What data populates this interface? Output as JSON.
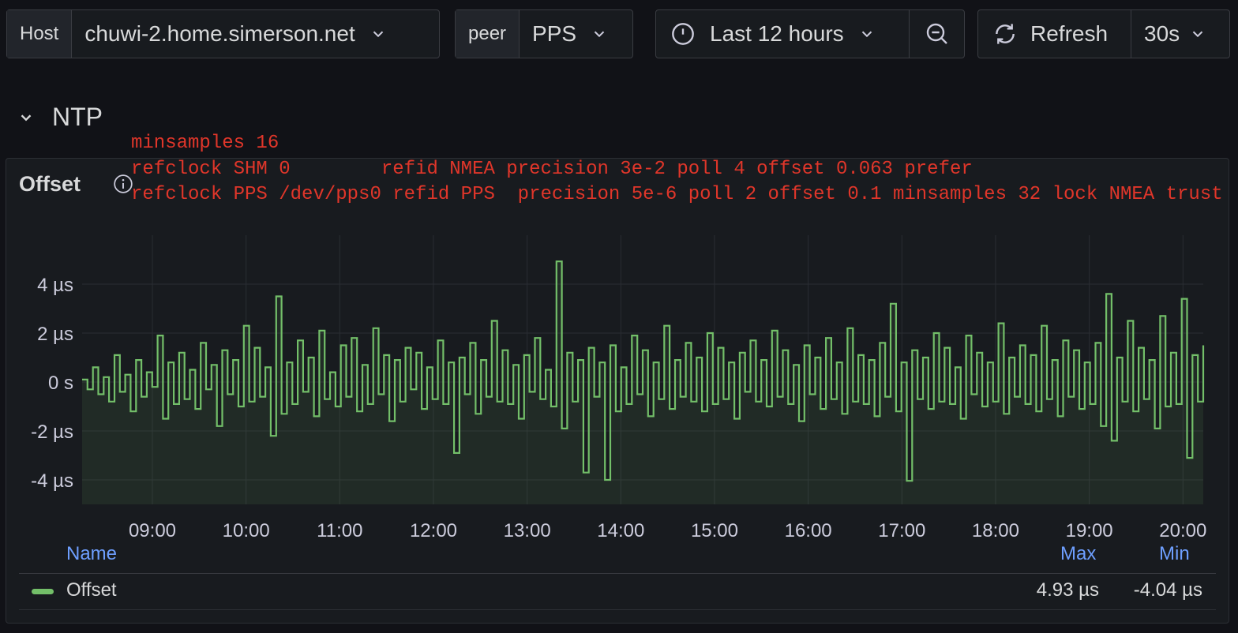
{
  "toolbar": {
    "host": {
      "label": "Host",
      "value": "chuwi-2.home.simerson.net"
    },
    "peer": {
      "label": "peer",
      "value": "PPS"
    },
    "time_range": {
      "label": "Last 12 hours"
    },
    "refresh": {
      "label": "Refresh",
      "interval": "30s"
    }
  },
  "row": {
    "title": "NTP"
  },
  "panel": {
    "title": "Offset",
    "error_text": "minsamples 16\nrefclock SHM 0        refid NMEA precision 3e-2 poll 4 offset 0.063 prefer\nrefclock PPS /dev/pps0 refid PPS  precision 5e-6 poll 2 offset 0.1 minsamples 32 lock NMEA trust"
  },
  "legend": {
    "headers": {
      "name": "Name",
      "max": "Max",
      "min": "Min"
    },
    "series": [
      {
        "name": "Offset",
        "max": "4.93 µs",
        "min": "-4.04 µs",
        "color": "#73bf69"
      }
    ]
  },
  "chart_data": {
    "type": "line",
    "title": "Offset",
    "x_start": "08:15",
    "x_end": "20:13",
    "x_ticks": [
      "09:00",
      "10:00",
      "11:00",
      "12:00",
      "13:00",
      "14:00",
      "15:00",
      "16:00",
      "17:00",
      "18:00",
      "19:00",
      "20:00"
    ],
    "y_ticks": [
      {
        "value": 4,
        "label": "4 µs"
      },
      {
        "value": 2,
        "label": "2 µs"
      },
      {
        "value": 0,
        "label": "0 s"
      },
      {
        "value": -2,
        "label": "-2 µs"
      },
      {
        "value": -4,
        "label": "-4 µs"
      }
    ],
    "ylim": [
      -5,
      6
    ],
    "grid": true,
    "series": [
      {
        "name": "Offset",
        "color": "#73bf69",
        "max": 4.93,
        "min": -4.04,
        "values": [
          0.1,
          -0.3,
          0.6,
          -0.5,
          0.2,
          -0.8,
          1.1,
          -0.4,
          0.3,
          -1.2,
          0.9,
          -0.6,
          0.4,
          -0.2,
          1.9,
          -1.5,
          0.8,
          -0.9,
          1.2,
          -0.7,
          0.5,
          -1.1,
          1.6,
          -0.3,
          0.7,
          -1.8,
          1.3,
          -0.5,
          0.9,
          -1.0,
          2.3,
          -0.8,
          1.4,
          -0.6,
          0.6,
          -2.2,
          3.5,
          -1.3,
          0.8,
          -0.9,
          1.7,
          -0.4,
          1.0,
          -1.4,
          2.1,
          -0.7,
          0.4,
          -1.0,
          1.5,
          -0.6,
          1.8,
          -1.2,
          0.7,
          -0.9,
          2.2,
          -0.5,
          1.1,
          -1.6,
          0.9,
          -0.8,
          1.4,
          -0.3,
          1.2,
          -1.1,
          0.6,
          -0.7,
          1.7,
          -0.9,
          0.8,
          -2.9,
          1.0,
          -0.5,
          1.6,
          -1.3,
          0.9,
          -0.6,
          2.5,
          -0.8,
          1.3,
          -0.9,
          0.7,
          -1.5,
          1.1,
          -0.4,
          1.8,
          -0.7,
          0.5,
          -1.0,
          4.93,
          -1.9,
          1.2,
          -0.8,
          0.9,
          -3.7,
          1.4,
          -0.6,
          0.8,
          -4.0,
          1.5,
          -1.2,
          0.6,
          -0.9,
          1.9,
          -0.5,
          1.3,
          -1.4,
          0.8,
          -0.7,
          2.3,
          -1.1,
          0.9,
          -0.6,
          1.6,
          -0.8,
          1.0,
          -1.2,
          2.0,
          -0.9,
          1.4,
          -0.7,
          0.8,
          -1.5,
          1.2,
          -0.4,
          1.7,
          -0.8,
          0.9,
          -1.0,
          2.1,
          -0.6,
          1.3,
          -0.9,
          0.7,
          -1.6,
          1.5,
          -0.5,
          1.0,
          -1.1,
          1.8,
          -0.7,
          0.8,
          -1.3,
          2.2,
          -0.8,
          1.1,
          -0.9,
          0.9,
          -1.4,
          1.6,
          -0.6,
          3.2,
          -1.2,
          0.8,
          -4.04,
          1.3,
          -0.7,
          1.0,
          -1.1,
          2.0,
          -0.8,
          1.4,
          -0.9,
          0.6,
          -1.5,
          1.9,
          -0.5,
          1.2,
          -1.0,
          0.8,
          -0.8,
          2.4,
          -1.3,
          1.0,
          -0.6,
          1.5,
          -0.9,
          1.1,
          -1.2,
          2.3,
          -0.7,
          0.9,
          -1.4,
          1.7,
          -0.6,
          1.3,
          -1.1,
          0.8,
          -0.9,
          1.6,
          -1.8,
          3.6,
          -2.4,
          1.0,
          -0.8,
          2.5,
          -1.2,
          1.4,
          -0.7,
          0.9,
          -1.9,
          2.7,
          -1.0,
          1.2,
          -0.9,
          3.4,
          -3.1,
          1.1,
          -0.8,
          1.5
        ]
      }
    ]
  }
}
